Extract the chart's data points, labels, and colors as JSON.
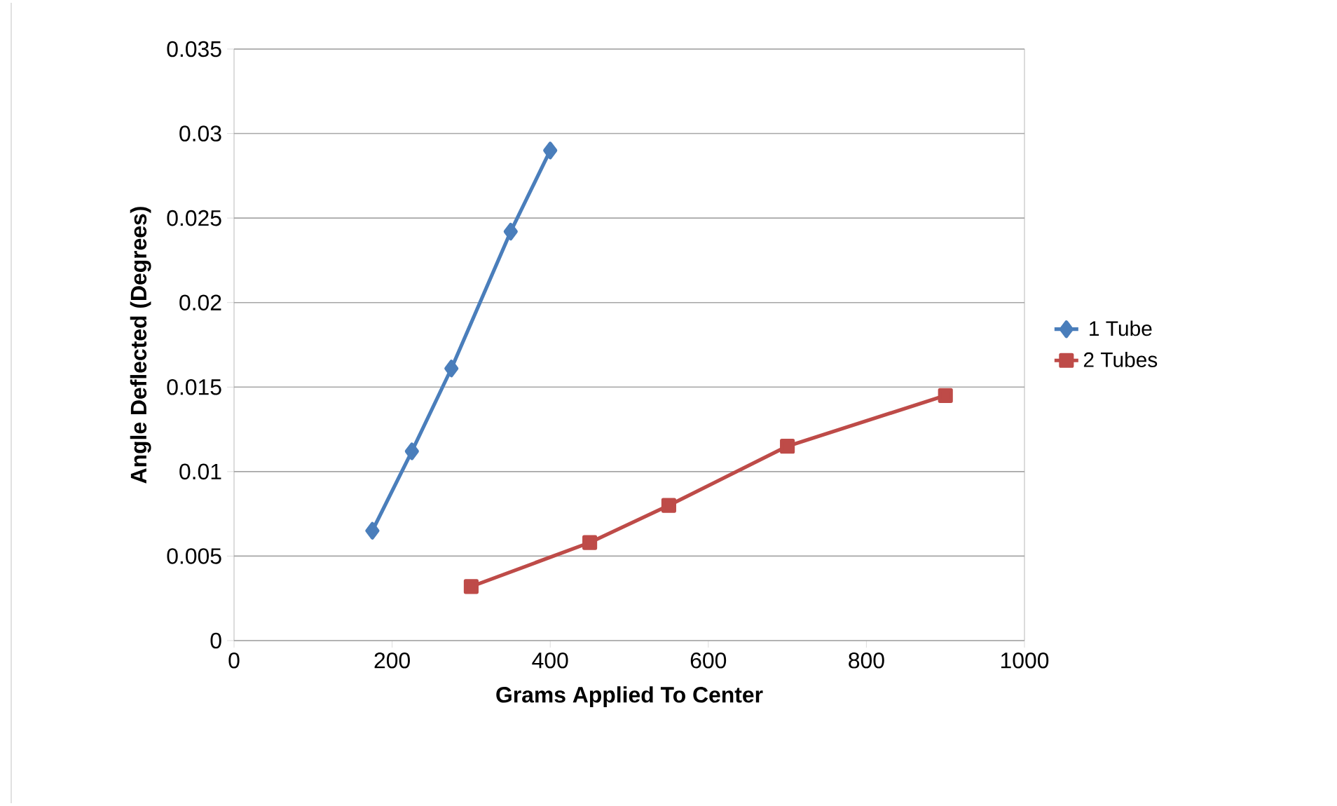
{
  "chart_data": {
    "type": "line",
    "xlabel": "Grams Applied To Center",
    "ylabel": "Angle Deflected (Degrees)",
    "series": [
      {
        "name": "1 Tube",
        "color": "#4a7ebb",
        "marker": "diamond",
        "x": [
          175,
          225,
          275,
          350,
          400
        ],
        "values": [
          0.0065,
          0.0112,
          0.0161,
          0.0242,
          0.029
        ]
      },
      {
        "name": "2 Tubes",
        "color": "#be4b48",
        "marker": "square",
        "x": [
          300,
          450,
          550,
          700,
          900
        ],
        "values": [
          0.0032,
          0.0058,
          0.008,
          0.0115,
          0.0145
        ]
      }
    ],
    "xlim": [
      0,
      1000
    ],
    "xticks": [
      0,
      200,
      400,
      600,
      800,
      1000
    ],
    "ylim": [
      0,
      0.035
    ],
    "yticks": [
      0,
      0.005,
      0.01,
      0.015,
      0.02,
      0.025,
      0.03,
      0.035
    ],
    "grid": "y",
    "legend": "right",
    "line_style": "solid"
  }
}
